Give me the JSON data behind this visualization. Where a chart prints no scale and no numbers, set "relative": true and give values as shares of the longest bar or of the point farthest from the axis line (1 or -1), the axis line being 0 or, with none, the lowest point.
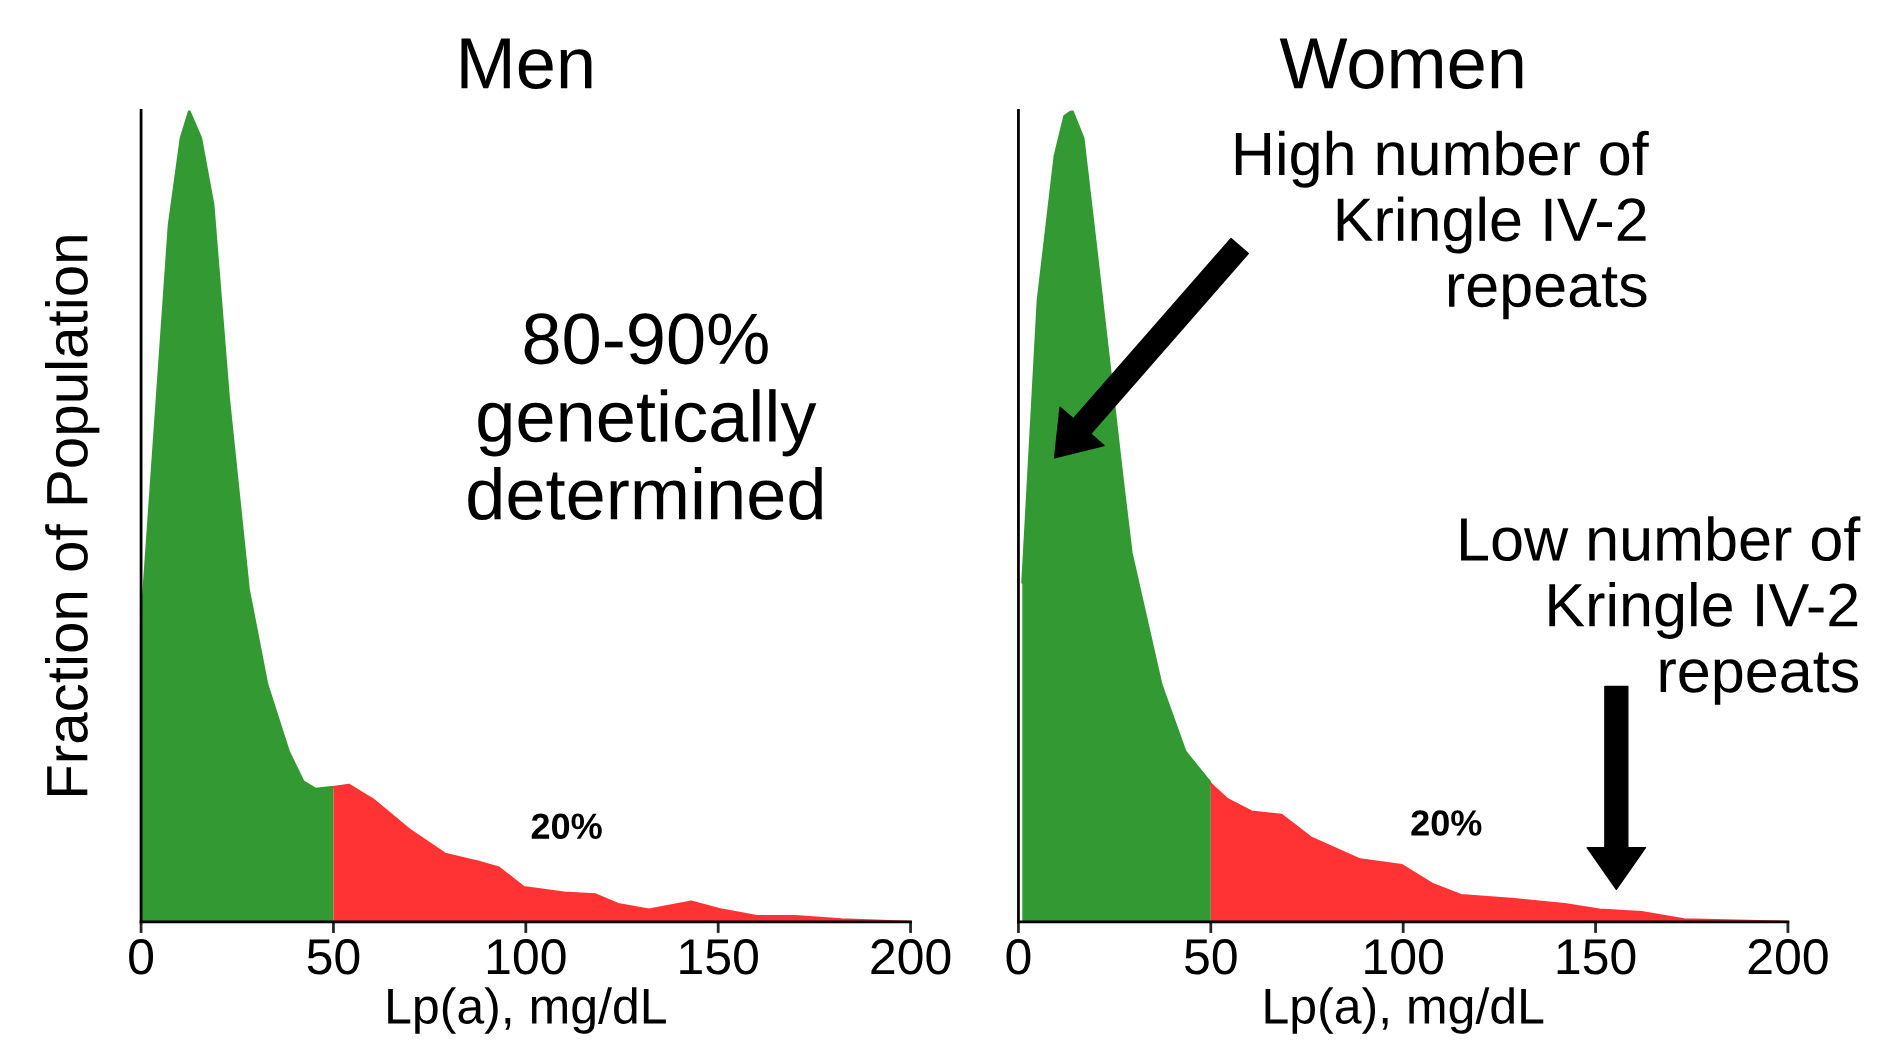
{
  "chart_data": [
    {
      "type": "area",
      "title": "Men",
      "xlabel": "Lp(a), mg/dL",
      "ylabel": "Fraction of Population",
      "relative": true,
      "xlim": [
        0,
        200
      ],
      "xticks": [
        0,
        50,
        100,
        150,
        200
      ],
      "grid": false,
      "legend": false,
      "series": [
        {
          "color": "#339933",
          "x": [
            0,
            7.2,
            10.3,
            12.5,
            15.6,
            18.8,
            22.8,
            28,
            32.8,
            38.4,
            42.2,
            45.3,
            49.4,
            50
          ],
          "values": [
            0.366,
            0.859,
            0.966,
            1,
            0.966,
            0.884,
            0.647,
            0.41,
            0.293,
            0.21,
            0.173,
            0.164,
            0.166,
            0.166
          ]
        },
        {
          "color": "#ff3333",
          "x": [
            50,
            54,
            60.3,
            69.7,
            79,
            87.8,
            93,
            99.4,
            110,
            118,
            124,
            132,
            143,
            151,
            160,
            170,
            182,
            200
          ],
          "values": [
            0.166,
            0.169,
            0.151,
            0.114,
            0.084,
            0.074,
            0.067,
            0.043,
            0.036,
            0.034,
            0.022,
            0.015,
            0.025,
            0.015,
            0.007,
            0.007,
            0.003,
            0
          ]
        }
      ],
      "annotations": [
        "80-90%\ngenetically\ndetermined",
        "20%"
      ]
    },
    {
      "type": "area",
      "title": "Women",
      "xlabel": "Lp(a), mg/dL",
      "relative": true,
      "xlim": [
        0,
        200
      ],
      "xticks": [
        0,
        50,
        100,
        150,
        200
      ],
      "grid": false,
      "legend": false,
      "series": [
        {
          "color": "#339933",
          "x": [
            1,
            5,
            9.4,
            11.9,
            14,
            16.9,
            20,
            27,
            29.4,
            37.2,
            43.4,
            49.7,
            50
          ],
          "values": [
            0.418,
            0.766,
            0.944,
            0.993,
            1,
            0.966,
            0.84,
            0.55,
            0.455,
            0.292,
            0.21,
            0.173,
            0.17
          ]
        },
        {
          "color": "#ff3333",
          "x": [
            50,
            54.4,
            60.6,
            68.4,
            76,
            88.8,
            99.7,
            107.5,
            115,
            129,
            142,
            151,
            162,
            173,
            200
          ],
          "values": [
            0.17,
            0.151,
            0.136,
            0.132,
            0.104,
            0.077,
            0.07,
            0.047,
            0.033,
            0.028,
            0.022,
            0.015,
            0.012,
            0.003,
            0
          ]
        }
      ],
      "annotations": [
        "High number of\nKringle IV-2\nrepeats",
        "20%",
        "Low number of\nKringle IV-2\nrepeats"
      ]
    }
  ]
}
